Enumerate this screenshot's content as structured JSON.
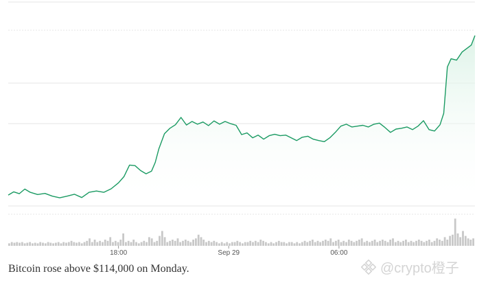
{
  "caption": "Bitcoin rose above $114,000 on Monday.",
  "watermark": {
    "text": "@crypto橙子",
    "logo_icon": "binance-square-icon"
  },
  "colors": {
    "line": "#1a9a62",
    "area_top": "#d8f1e4",
    "volume": "#c8c8c8",
    "grid": "#e6e6e6",
    "tick_label": "#555555"
  },
  "chart_data": {
    "type": "line",
    "title": "",
    "xlabel": "",
    "ylabel": "",
    "grid": true,
    "legend": "none",
    "x_ticks": [
      "18:00",
      "Sep 29",
      "06:00"
    ],
    "x_tick_at_hour": [
      6,
      12,
      18
    ],
    "time_span_hours": 25.4,
    "price_scale": "unlabeled",
    "series": [
      {
        "points": [
          [
            0.0,
            4.0
          ],
          [
            0.3,
            5.2
          ],
          [
            0.6,
            4.5
          ],
          [
            0.9,
            6.2
          ],
          [
            1.2,
            5.0
          ],
          [
            1.6,
            4.2
          ],
          [
            2.0,
            4.6
          ],
          [
            2.4,
            3.6
          ],
          [
            2.8,
            3.0
          ],
          [
            3.2,
            3.6
          ],
          [
            3.6,
            4.3
          ],
          [
            4.0,
            3.1
          ],
          [
            4.4,
            5.0
          ],
          [
            4.8,
            5.5
          ],
          [
            5.2,
            5.0
          ],
          [
            5.6,
            6.3
          ],
          [
            6.0,
            8.5
          ],
          [
            6.3,
            10.8
          ],
          [
            6.6,
            15.0
          ],
          [
            6.9,
            14.8
          ],
          [
            7.2,
            13.0
          ],
          [
            7.5,
            11.8
          ],
          [
            7.8,
            12.8
          ],
          [
            8.0,
            16.0
          ],
          [
            8.2,
            21.0
          ],
          [
            8.5,
            26.5
          ],
          [
            8.8,
            28.5
          ],
          [
            9.1,
            29.8
          ],
          [
            9.4,
            32.5
          ],
          [
            9.7,
            29.7
          ],
          [
            10.0,
            31.0
          ],
          [
            10.3,
            30.0
          ],
          [
            10.6,
            30.8
          ],
          [
            10.9,
            29.5
          ],
          [
            11.2,
            31.2
          ],
          [
            11.5,
            30.0
          ],
          [
            11.8,
            31.0
          ],
          [
            12.1,
            30.2
          ],
          [
            12.4,
            29.6
          ],
          [
            12.7,
            26.2
          ],
          [
            13.0,
            26.8
          ],
          [
            13.3,
            25.0
          ],
          [
            13.6,
            26.0
          ],
          [
            13.9,
            24.5
          ],
          [
            14.2,
            25.8
          ],
          [
            14.5,
            26.3
          ],
          [
            14.8,
            25.8
          ],
          [
            15.1,
            26.0
          ],
          [
            15.4,
            25.0
          ],
          [
            15.7,
            24.0
          ],
          [
            16.0,
            25.2
          ],
          [
            16.3,
            25.6
          ],
          [
            16.6,
            24.5
          ],
          [
            16.9,
            24.0
          ],
          [
            17.2,
            23.6
          ],
          [
            17.5,
            25.0
          ],
          [
            17.8,
            27.0
          ],
          [
            18.1,
            29.3
          ],
          [
            18.4,
            30.0
          ],
          [
            18.7,
            29.0
          ],
          [
            19.0,
            29.3
          ],
          [
            19.3,
            29.6
          ],
          [
            19.6,
            29.0
          ],
          [
            19.9,
            30.0
          ],
          [
            20.2,
            30.4
          ],
          [
            20.5,
            28.8
          ],
          [
            20.8,
            27.0
          ],
          [
            21.1,
            28.2
          ],
          [
            21.4,
            28.5
          ],
          [
            21.7,
            29.0
          ],
          [
            22.0,
            28.0
          ],
          [
            22.3,
            29.3
          ],
          [
            22.6,
            31.3
          ],
          [
            22.9,
            28.0
          ],
          [
            23.2,
            27.5
          ],
          [
            23.5,
            29.8
          ],
          [
            23.7,
            34.0
          ],
          [
            23.9,
            51.0
          ],
          [
            24.1,
            54.0
          ],
          [
            24.4,
            53.5
          ],
          [
            24.7,
            56.5
          ],
          [
            25.0,
            58.0
          ],
          [
            25.2,
            59.0
          ],
          [
            25.4,
            62.5
          ]
        ]
      }
    ],
    "volume": [
      2,
      3,
      2.5,
      3,
      2.5,
      3,
      2,
      2.5,
      3,
      2,
      2.5,
      2,
      3,
      2.5,
      2,
      3,
      2.5,
      2,
      2.5,
      3,
      2,
      3,
      2.5,
      3,
      4,
      3,
      2.5,
      3,
      2,
      3,
      4,
      6,
      3,
      5,
      3,
      4,
      3,
      5,
      4,
      7,
      3,
      4,
      3,
      5,
      10,
      3,
      4,
      3,
      5,
      3,
      2,
      3,
      4,
      3,
      7,
      6,
      3,
      4,
      8,
      12,
      7,
      3,
      4,
      5,
      4,
      6,
      3,
      4,
      5,
      4,
      3,
      5,
      6,
      9,
      7,
      5,
      3,
      4,
      3,
      4,
      3,
      2,
      3,
      2,
      3,
      2,
      3,
      3,
      4,
      3,
      2,
      3,
      3,
      4,
      3,
      4,
      3,
      5,
      4,
      3,
      2,
      3,
      2,
      3,
      4,
      3,
      3,
      2,
      3,
      3,
      2,
      3,
      2,
      3,
      4,
      3,
      4,
      5,
      3,
      4,
      3,
      4,
      5,
      4,
      6,
      3,
      4,
      5,
      3,
      4,
      3,
      5,
      4,
      3,
      4,
      5,
      6,
      3,
      4,
      3,
      4,
      5,
      3,
      4,
      5,
      4,
      3,
      5,
      6,
      3,
      4,
      3,
      4,
      5,
      3,
      4,
      3,
      4,
      5,
      4,
      3,
      4,
      5,
      3,
      4,
      6,
      5,
      4,
      7,
      5,
      8,
      9,
      22,
      10,
      7,
      12,
      8,
      6,
      5,
      6
    ]
  }
}
